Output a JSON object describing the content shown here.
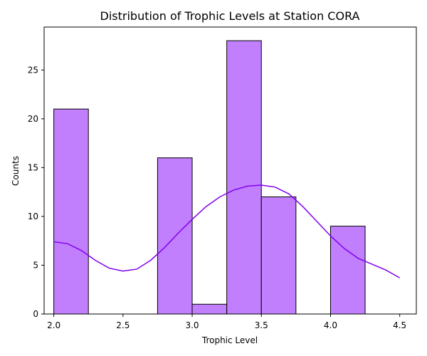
{
  "chart_data": {
    "type": "bar",
    "subtype": "histogram-with-kde",
    "title": "Distribution of Trophic Levels at Station CORA",
    "xlabel": "Trophic Level",
    "ylabel": "Counts",
    "xlim": [
      1.93,
      4.62
    ],
    "ylim": [
      0,
      29.4
    ],
    "x_ticks": [
      2.0,
      2.5,
      3.0,
      3.5,
      4.0,
      4.5
    ],
    "x_tick_labels": [
      "2.0",
      "2.5",
      "3.0",
      "3.5",
      "4.0",
      "4.5"
    ],
    "y_ticks": [
      0,
      5,
      10,
      15,
      20,
      25
    ],
    "y_tick_labels": [
      "0",
      "5",
      "10",
      "15",
      "20",
      "25"
    ],
    "bins": [
      {
        "x0": 2.0,
        "x1": 2.25,
        "count": 21
      },
      {
        "x0": 2.25,
        "x1": 2.5,
        "count": 0
      },
      {
        "x0": 2.5,
        "x1": 2.75,
        "count": 0
      },
      {
        "x0": 2.75,
        "x1": 3.0,
        "count": 16
      },
      {
        "x0": 3.0,
        "x1": 3.25,
        "count": 1
      },
      {
        "x0": 3.25,
        "x1": 3.5,
        "count": 28
      },
      {
        "x0": 3.5,
        "x1": 3.75,
        "count": 12
      },
      {
        "x0": 3.75,
        "x1": 4.0,
        "count": 0
      },
      {
        "x0": 4.0,
        "x1": 4.25,
        "count": 9
      }
    ],
    "kde": {
      "x": [
        2.0,
        2.1,
        2.2,
        2.3,
        2.4,
        2.5,
        2.6,
        2.7,
        2.8,
        2.9,
        3.0,
        3.1,
        3.2,
        3.3,
        3.4,
        3.5,
        3.6,
        3.7,
        3.8,
        3.9,
        4.0,
        4.1,
        4.2,
        4.3,
        4.4,
        4.5
      ],
      "y": [
        7.4,
        7.2,
        6.5,
        5.5,
        4.7,
        4.4,
        4.6,
        5.5,
        6.8,
        8.3,
        9.7,
        11.0,
        12.0,
        12.7,
        13.1,
        13.2,
        13.0,
        12.3,
        11.0,
        9.5,
        8.0,
        6.7,
        5.7,
        5.1,
        4.5,
        3.7
      ]
    },
    "grid": false,
    "colors": {
      "bar_fill": "#c17ffe",
      "bar_edge": "#000000",
      "kde_line": "#8000ee"
    }
  }
}
